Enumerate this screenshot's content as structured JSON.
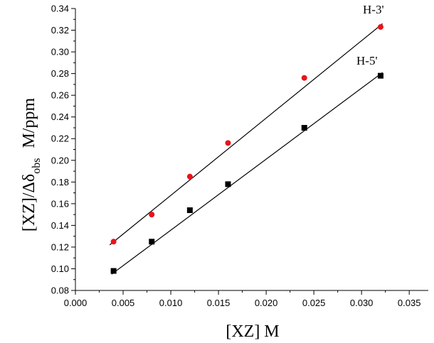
{
  "chart_data": {
    "type": "scatter",
    "title": "",
    "xlabel": "[XZ] M",
    "ylabel": {
      "base": "[XZ]/Δδ",
      "subscript": "obs",
      "suffix": "M/ppm"
    },
    "xlim": [
      0.0,
      0.037
    ],
    "ylim": [
      0.08,
      0.34
    ],
    "x_ticks": [
      "0.000",
      "0.005",
      "0.010",
      "0.015",
      "0.020",
      "0.025",
      "0.030",
      "0.035"
    ],
    "y_ticks": [
      "0.08",
      "0.10",
      "0.12",
      "0.14",
      "0.16",
      "0.18",
      "0.20",
      "0.22",
      "0.24",
      "0.26",
      "0.28",
      "0.30",
      "0.32",
      "0.34"
    ],
    "grid": false,
    "series": [
      {
        "name": "H-3'",
        "marker": "circle",
        "color": "#e8141b",
        "x": [
          0.004,
          0.008,
          0.012,
          0.016,
          0.024,
          0.032
        ],
        "y": [
          0.125,
          0.15,
          0.185,
          0.216,
          0.276,
          0.323
        ],
        "fit_line": {
          "x": [
            0.0036,
            0.0322
          ],
          "y": [
            0.122,
            0.326
          ],
          "color": "#000000"
        }
      },
      {
        "name": "H-5'",
        "marker": "square",
        "color": "#000000",
        "x": [
          0.004,
          0.008,
          0.012,
          0.016,
          0.024,
          0.032
        ],
        "y": [
          0.098,
          0.125,
          0.154,
          0.178,
          0.23,
          0.278
        ],
        "fit_line": {
          "x": [
            0.0038,
            0.0322
          ],
          "y": [
            0.095,
            0.281
          ],
          "color": "#000000"
        }
      }
    ]
  }
}
